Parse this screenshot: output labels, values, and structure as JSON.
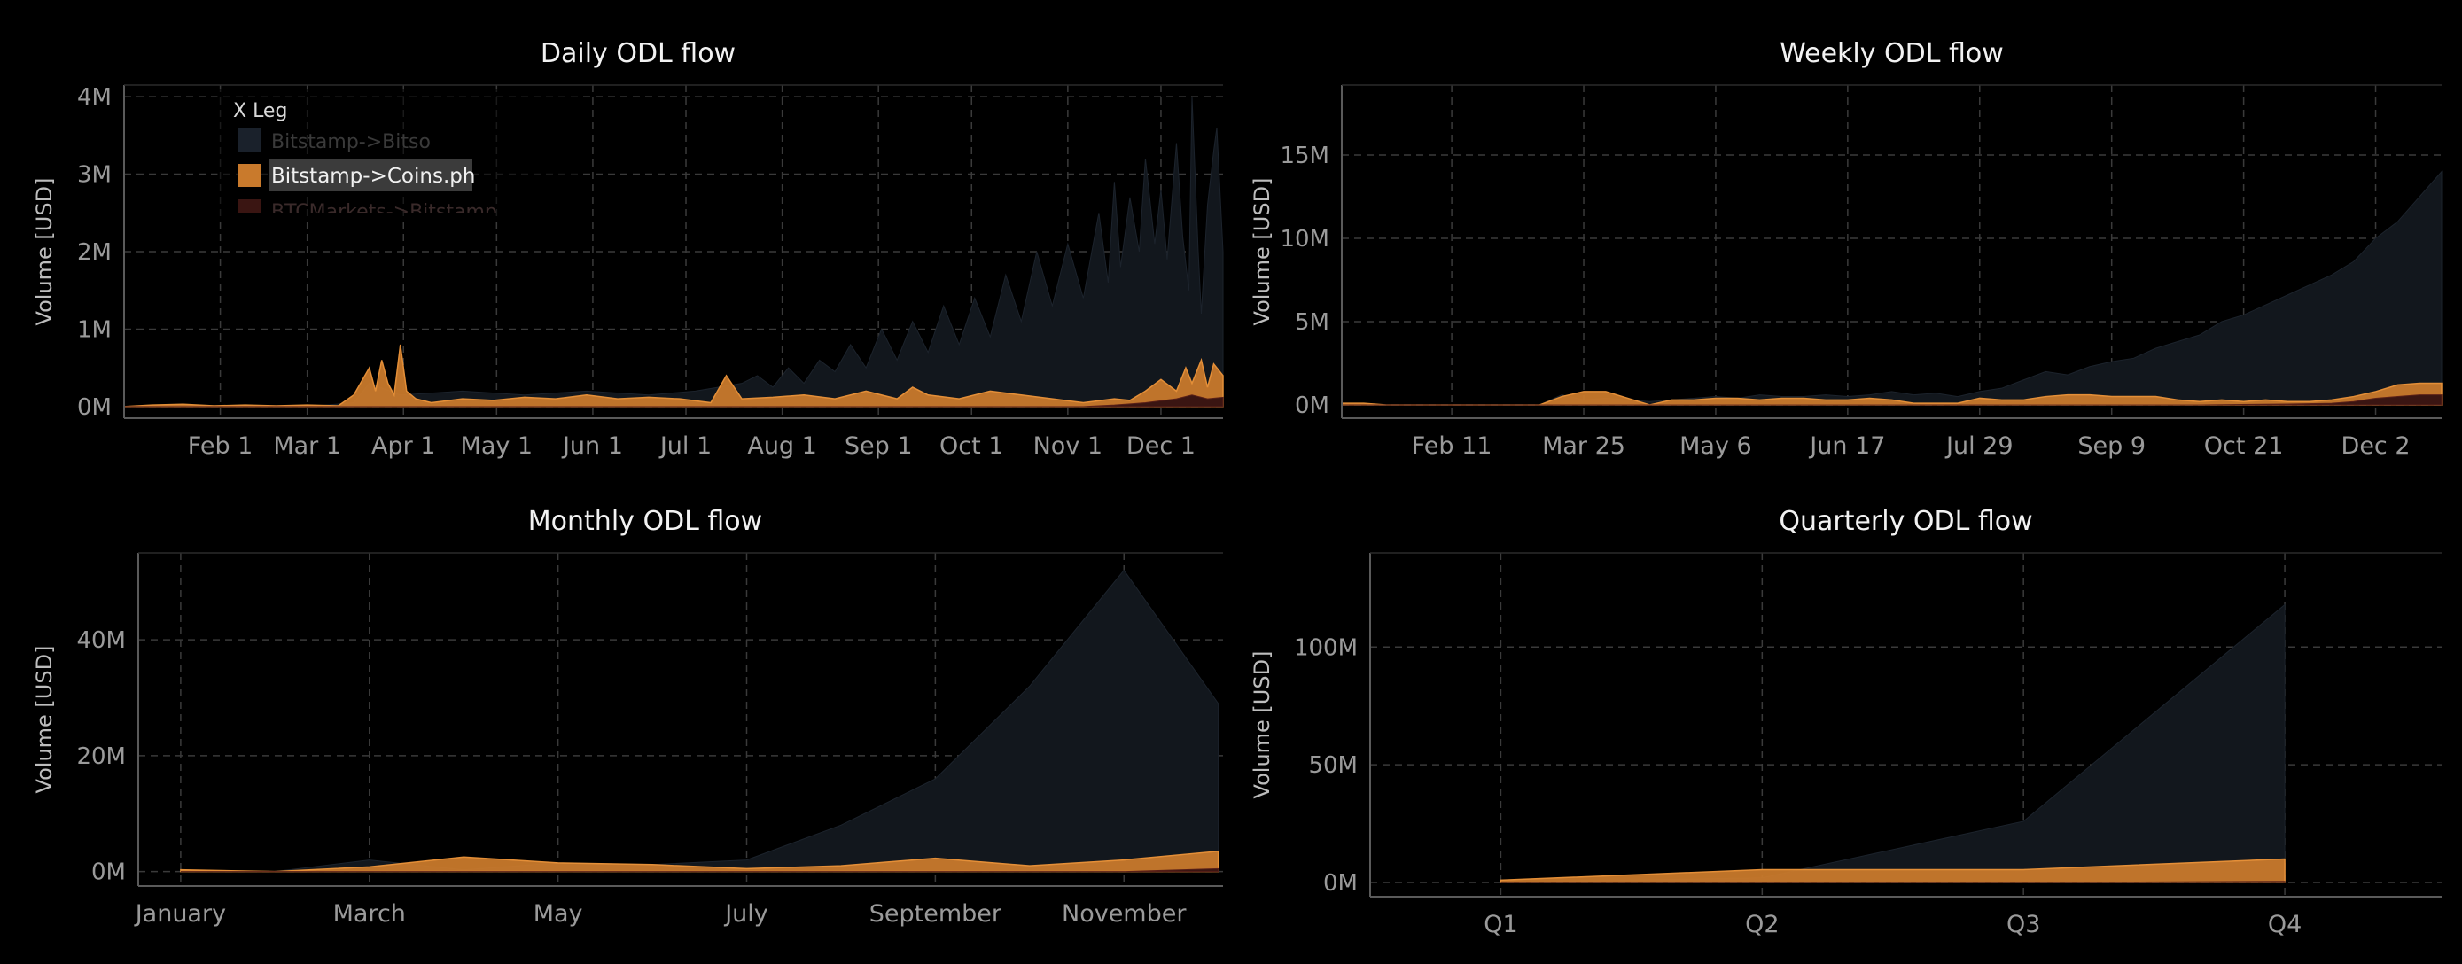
{
  "colors": {
    "background": "#000000",
    "bitso_fill": "#12171d",
    "coins_fill": "#c97a2c",
    "coins_stroke": "#f0963a",
    "btcmarkets_fill": "#3a1512",
    "grid": "#3a3a3a",
    "axis": "#5a5a5a",
    "tick_text": "#9a9a9a",
    "title_text": "#f2f2f2"
  },
  "legend": {
    "title": "X Leg",
    "items": [
      {
        "label": "Bitstamp->Bitso",
        "color": "#12171d",
        "state": "faded"
      },
      {
        "label": "Bitstamp->Coins.ph",
        "color": "#c97a2c",
        "state": "highlighted"
      },
      {
        "label": "BTCMarkets->Bitstamp",
        "color": "#3a1512",
        "state": "faded"
      }
    ]
  },
  "chart_data": [
    {
      "type": "area",
      "title": "Daily ODL flow",
      "ylabel": "Volume [USD]",
      "xlabel": "",
      "x_tick_labels": [
        "Feb 1",
        "Mar 1",
        "Apr 1",
        "May 1",
        "Jun 1",
        "Jul 1",
        "Aug 1",
        "Sep 1",
        "Oct 1",
        "Nov 1",
        "Dec 1"
      ],
      "y_tick_labels": [
        "0M",
        "1M",
        "2M",
        "3M",
        "4M"
      ],
      "y_tick_values": [
        0,
        1,
        2,
        3,
        4
      ],
      "ylim": [
        -0.15,
        4.15
      ],
      "x_unit": "day of year 2019",
      "xlim": [
        1,
        355
      ],
      "grid": true,
      "legend_position": "top-left",
      "series": [
        {
          "name": "Bitstamp->Bitso",
          "x": [
            1,
            60,
            75,
            80,
            90,
            110,
            130,
            150,
            170,
            185,
            200,
            205,
            210,
            215,
            220,
            225,
            230,
            235,
            240,
            245,
            250,
            255,
            260,
            265,
            270,
            275,
            280,
            285,
            290,
            295,
            300,
            305,
            310,
            315,
            318,
            320,
            322,
            325,
            328,
            330,
            333,
            335,
            337,
            340,
            342,
            344,
            345,
            347,
            348,
            350,
            352,
            353,
            355
          ],
          "values": [
            0,
            0,
            0.05,
            0.3,
            0.15,
            0.2,
            0.15,
            0.2,
            0.15,
            0.2,
            0.3,
            0.4,
            0.25,
            0.5,
            0.3,
            0.6,
            0.45,
            0.8,
            0.5,
            1.0,
            0.6,
            1.1,
            0.7,
            1.3,
            0.8,
            1.4,
            0.9,
            1.7,
            1.1,
            2.0,
            1.3,
            2.1,
            1.4,
            2.5,
            1.6,
            2.9,
            1.8,
            2.7,
            2.0,
            3.2,
            2.1,
            2.8,
            1.9,
            3.4,
            2.2,
            1.5,
            4.0,
            2.0,
            1.2,
            2.6,
            3.3,
            3.6,
            2.0
          ]
        },
        {
          "name": "Bitstamp->Coins.ph",
          "x": [
            1,
            10,
            20,
            30,
            40,
            50,
            60,
            70,
            75,
            80,
            82,
            84,
            86,
            88,
            90,
            92,
            95,
            100,
            110,
            120,
            130,
            140,
            150,
            160,
            170,
            180,
            190,
            195,
            200,
            210,
            220,
            230,
            240,
            250,
            255,
            260,
            270,
            280,
            290,
            300,
            310,
            320,
            325,
            330,
            335,
            340,
            343,
            345,
            348,
            350,
            352,
            355
          ],
          "values": [
            0,
            0.02,
            0.03,
            0.01,
            0.02,
            0.01,
            0.02,
            0.01,
            0.15,
            0.5,
            0.2,
            0.6,
            0.3,
            0.15,
            0.8,
            0.2,
            0.1,
            0.05,
            0.1,
            0.08,
            0.12,
            0.1,
            0.15,
            0.1,
            0.12,
            0.1,
            0.05,
            0.4,
            0.1,
            0.12,
            0.15,
            0.1,
            0.2,
            0.1,
            0.25,
            0.15,
            0.1,
            0.2,
            0.15,
            0.1,
            0.05,
            0.1,
            0.08,
            0.2,
            0.35,
            0.2,
            0.5,
            0.3,
            0.6,
            0.25,
            0.55,
            0.4
          ]
        },
        {
          "name": "BTCMarkets->Bitstamp",
          "x": [
            1,
            310,
            320,
            330,
            340,
            345,
            350,
            355
          ],
          "values": [
            0,
            0,
            0.02,
            0.05,
            0.1,
            0.15,
            0.1,
            0.12
          ]
        }
      ]
    },
    {
      "type": "area",
      "title": "Weekly ODL flow",
      "ylabel": "Volume [USD]",
      "xlabel": "",
      "x_tick_labels": [
        "Feb 11",
        "Mar 25",
        "May 6",
        "Jun 17",
        "Jul 29",
        "Sep 9",
        "Oct 21",
        "Dec 2"
      ],
      "y_tick_labels": [
        "0M",
        "5M",
        "10M",
        "15M"
      ],
      "y_tick_values": [
        0,
        5,
        10,
        15
      ],
      "ylim": [
        -0.8,
        19.2
      ],
      "x_unit": "week number 2019",
      "xlim": [
        1,
        51
      ],
      "grid": true,
      "series": [
        {
          "name": "Bitstamp->Bitso",
          "x": [
            1,
            2,
            3,
            4,
            5,
            6,
            7,
            8,
            9,
            10,
            11,
            12,
            13,
            14,
            15,
            16,
            17,
            18,
            19,
            20,
            21,
            22,
            23,
            24,
            25,
            26,
            27,
            28,
            29,
            30,
            31,
            32,
            33,
            34,
            35,
            36,
            37,
            38,
            39,
            40,
            41,
            42,
            43,
            44,
            45,
            46,
            47,
            48,
            49,
            50,
            51
          ],
          "values": [
            0,
            0,
            0,
            0,
            0,
            0,
            0,
            0,
            0,
            0,
            0.6,
            0.3,
            0.4,
            0.3,
            0.2,
            0.3,
            0.4,
            0.5,
            0.4,
            0.6,
            0.5,
            0.5,
            0.6,
            0.5,
            0.6,
            0.8,
            0.6,
            0.7,
            0.5,
            0.8,
            1.0,
            1.5,
            2.0,
            1.8,
            2.3,
            2.6,
            2.8,
            3.4,
            3.8,
            4.2,
            5.0,
            5.4,
            6.0,
            6.6,
            7.2,
            7.8,
            8.6,
            10,
            11,
            12.5,
            14
          ]
        },
        {
          "name": "Bitstamp->Coins.ph",
          "x": [
            1,
            2,
            3,
            4,
            5,
            6,
            7,
            8,
            9,
            10,
            11,
            12,
            13,
            14,
            15,
            16,
            17,
            18,
            19,
            20,
            21,
            22,
            23,
            24,
            25,
            26,
            27,
            28,
            29,
            30,
            31,
            32,
            33,
            34,
            35,
            36,
            37,
            38,
            39,
            40,
            41,
            42,
            43,
            44,
            45,
            46,
            47,
            48,
            49,
            50,
            51
          ],
          "values": [
            0.1,
            0.1,
            0,
            0,
            0,
            0,
            0,
            0,
            0,
            0,
            0.5,
            0.8,
            0.8,
            0.4,
            0,
            0.3,
            0.3,
            0.4,
            0.4,
            0.3,
            0.4,
            0.4,
            0.3,
            0.3,
            0.4,
            0.3,
            0.1,
            0.1,
            0.1,
            0.4,
            0.3,
            0.3,
            0.5,
            0.6,
            0.6,
            0.5,
            0.5,
            0.5,
            0.3,
            0.2,
            0.3,
            0.2,
            0.3,
            0.2,
            0.2,
            0.3,
            0.5,
            0.8,
            1.2,
            1.3,
            1.3
          ]
        },
        {
          "name": "BTCMarkets->Bitstamp",
          "x": [
            1,
            40,
            44,
            46,
            47,
            48,
            49,
            50,
            51
          ],
          "values": [
            0,
            0,
            0.05,
            0.1,
            0.2,
            0.4,
            0.5,
            0.6,
            0.6
          ]
        }
      ]
    },
    {
      "type": "area",
      "title": "Monthly ODL flow",
      "ylabel": "Volume [USD]",
      "xlabel": "",
      "x_tick_labels": [
        "January",
        "March",
        "May",
        "July",
        "September",
        "November"
      ],
      "x_tick_values": [
        1,
        3,
        5,
        7,
        9,
        11
      ],
      "y_tick_labels": [
        "0M",
        "20M",
        "40M"
      ],
      "y_tick_values": [
        0,
        20,
        40
      ],
      "ylim": [
        -2.5,
        55
      ],
      "xlim": [
        0.55,
        12.05
      ],
      "grid": true,
      "series": [
        {
          "name": "Bitstamp->Bitso",
          "x": [
            1,
            2,
            3,
            4,
            5,
            6,
            7,
            8,
            9,
            10,
            11,
            12
          ],
          "values": [
            0,
            0,
            2,
            0.3,
            1.5,
            1.2,
            2,
            8,
            16,
            32,
            52,
            29
          ]
        },
        {
          "name": "Bitstamp->Coins.ph",
          "x": [
            1,
            2,
            3,
            4,
            5,
            6,
            7,
            8,
            9,
            10,
            11,
            12
          ],
          "values": [
            0.3,
            0,
            0.8,
            2.5,
            1.5,
            1.2,
            0.5,
            1,
            2.3,
            1,
            2,
            3.5
          ]
        },
        {
          "name": "BTCMarkets->Bitstamp",
          "x": [
            1,
            10,
            11,
            12
          ],
          "values": [
            0,
            0,
            0,
            0.5
          ]
        }
      ]
    },
    {
      "type": "area",
      "title": "Quarterly ODL flow",
      "ylabel": "Volume [USD]",
      "xlabel": "",
      "x_tick_labels": [
        "Q1",
        "Q2",
        "Q3",
        "Q4"
      ],
      "x_tick_values": [
        1,
        2,
        3,
        4
      ],
      "y_tick_labels": [
        "0M",
        "50M",
        "100M"
      ],
      "y_tick_values": [
        0,
        50,
        100
      ],
      "ylim": [
        -6,
        140
      ],
      "xlim": [
        0.5,
        4.6
      ],
      "grid": true,
      "series": [
        {
          "name": "Bitstamp->Bitso",
          "x": [
            1,
            2,
            3,
            4
          ],
          "values": [
            0,
            2,
            26,
            118
          ]
        },
        {
          "name": "Bitstamp->Coins.ph",
          "x": [
            1,
            2,
            3,
            4
          ],
          "values": [
            1,
            5.5,
            5.5,
            10
          ]
        },
        {
          "name": "BTCMarkets->Bitstamp",
          "x": [
            1,
            2,
            3,
            4
          ],
          "values": [
            0,
            0,
            0,
            0.5
          ]
        }
      ]
    }
  ]
}
